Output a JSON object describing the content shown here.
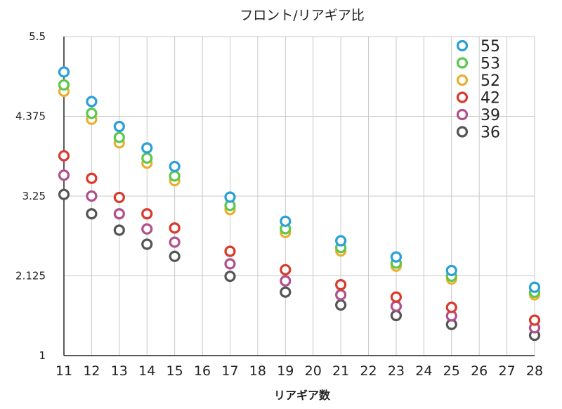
{
  "chart_data": {
    "type": "scatter",
    "title": "フロント/リアギア比",
    "xlabel": "リアギア数",
    "ylabel": "",
    "x": [
      11,
      12,
      13,
      14,
      15,
      17,
      19,
      21,
      23,
      25,
      28
    ],
    "xticks": [
      11,
      12,
      13,
      14,
      15,
      16,
      17,
      18,
      19,
      20,
      21,
      22,
      23,
      24,
      25,
      26,
      27,
      28
    ],
    "xlim": [
      11,
      28
    ],
    "ylim": [
      1,
      5.5
    ],
    "yticks": [
      1,
      2.125,
      3.25,
      4.375,
      5.5
    ],
    "ytick_labels": [
      "1",
      "2.125",
      "3.25",
      "4.375",
      "5.5"
    ],
    "grid": true,
    "legend_position": "top-right",
    "series": [
      {
        "name": "55",
        "color": "#2a9fd8",
        "values": [
          5.0,
          4.583,
          4.231,
          3.929,
          3.667,
          3.235,
          2.895,
          2.619,
          2.391,
          2.2,
          1.964
        ]
      },
      {
        "name": "53",
        "color": "#5cc84a",
        "values": [
          4.818,
          4.417,
          4.077,
          3.786,
          3.533,
          3.118,
          2.789,
          2.524,
          2.304,
          2.12,
          1.893
        ]
      },
      {
        "name": "52",
        "color": "#e8b030",
        "values": [
          4.727,
          4.333,
          4.0,
          3.714,
          3.467,
          3.059,
          2.737,
          2.476,
          2.261,
          2.08,
          1.857
        ]
      },
      {
        "name": "42",
        "color": "#d83a2c",
        "values": [
          3.818,
          3.5,
          3.231,
          3.0,
          2.8,
          2.471,
          2.211,
          2.0,
          1.826,
          1.68,
          1.5
        ]
      },
      {
        "name": "39",
        "color": "#b0508c",
        "values": [
          3.545,
          3.25,
          3.0,
          2.786,
          2.6,
          2.294,
          2.053,
          1.857,
          1.696,
          1.56,
          1.393
        ]
      },
      {
        "name": "36",
        "color": "#555555",
        "values": [
          3.273,
          3.0,
          2.769,
          2.571,
          2.4,
          2.118,
          1.895,
          1.714,
          1.565,
          1.44,
          1.286
        ]
      }
    ]
  }
}
